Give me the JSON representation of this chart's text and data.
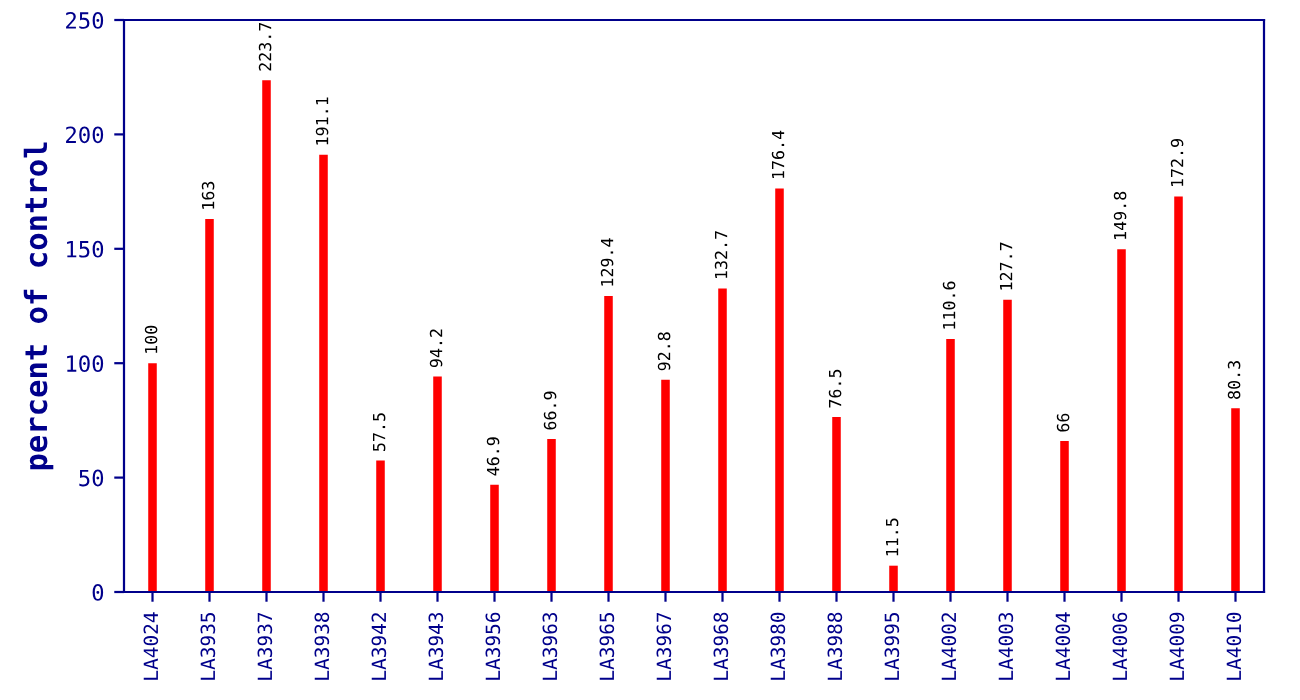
{
  "chart_data": {
    "type": "bar",
    "ylabel": "percent of control",
    "categories": [
      "LA4024",
      "LA3935",
      "LA3937",
      "LA3938",
      "LA3942",
      "LA3943",
      "LA3956",
      "LA3963",
      "LA3965",
      "LA3967",
      "LA3968",
      "LA3980",
      "LA3988",
      "LA3995",
      "LA4002",
      "LA4003",
      "LA4004",
      "LA4006",
      "LA4009",
      "LA4010"
    ],
    "values": [
      100,
      163,
      223.7,
      191.1,
      57.5,
      94.2,
      46.9,
      66.9,
      129.4,
      92.8,
      132.7,
      176.4,
      76.5,
      11.5,
      110.6,
      127.7,
      66,
      149.8,
      172.9,
      80.3
    ],
    "color": "#ff0000",
    "ylim": [
      0,
      250
    ],
    "yticks": [
      0,
      50,
      100,
      150,
      200,
      250
    ],
    "data_labels": true,
    "grid": false,
    "legend": false
  }
}
